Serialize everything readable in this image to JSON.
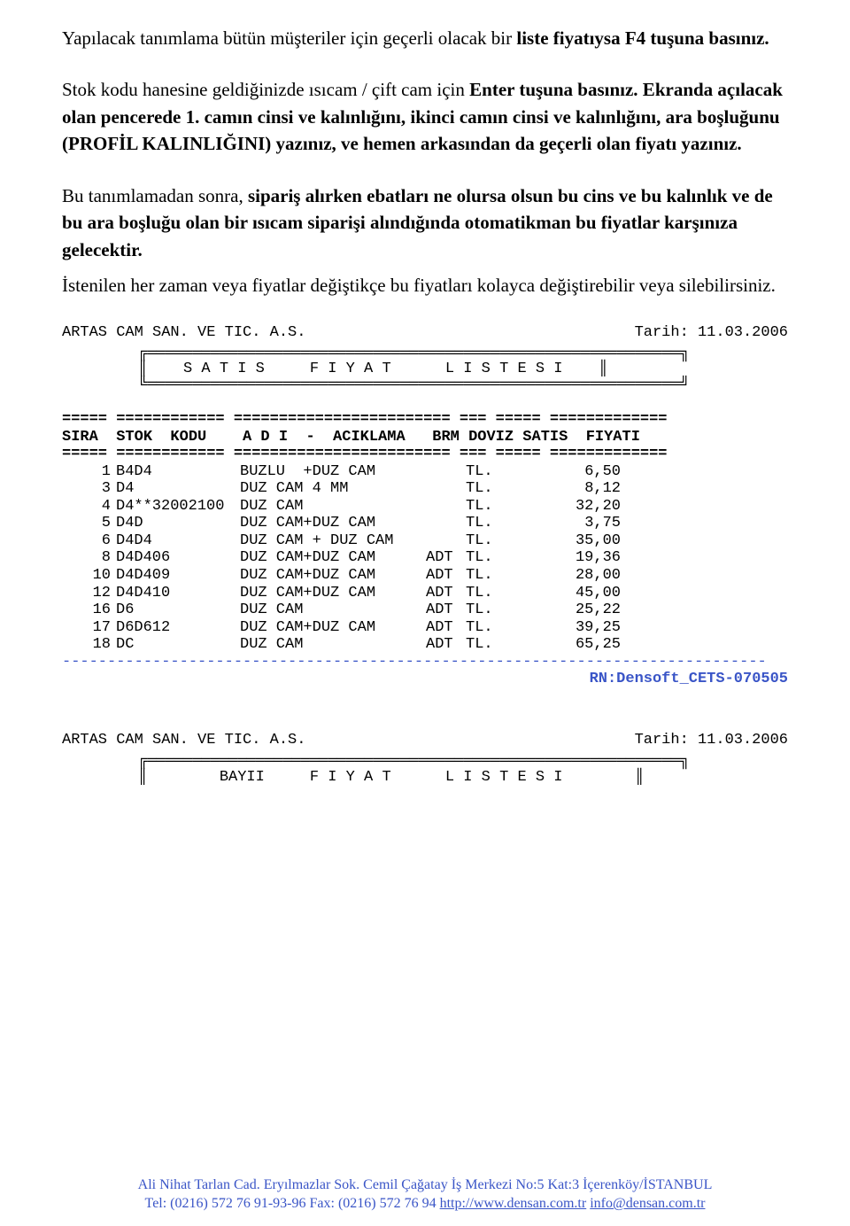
{
  "para1": {
    "pre": "Yapılacak tanımlama bütün müşteriler için geçerli olacak bir ",
    "bold": "liste fiyatıysa F4 tuşuna basınız."
  },
  "para2": {
    "pre": "Stok kodu hanesine geldiğinizde ısıcam / çift cam için ",
    "bold": "Enter tuşuna basınız. Ekranda açılacak olan pencerede 1. camın cinsi ve kalınlığını, ikinci camın cinsi ve kalınlığını, ara boşluğunu (PROFİL KALINLIĞINI) yazınız, ve hemen arkasından da geçerli olan fiyatı yazınız."
  },
  "para3": {
    "pre": "Bu tanımlamadan sonra, ",
    "bold": "sipariş alırken ebatları ne olursa olsun bu cins ve bu kalınlık ve de bu ara boşluğu olan bir ısıcam siparişi alındığında otomatikman bu fiyatlar karşınıza gelecektir."
  },
  "para4": "İstenilen her zaman veya fiyatlar değiştikçe bu fiyatları kolayca değiştirebilir veya silebilirsiniz.",
  "report1": {
    "company": "ARTAS CAM SAN. VE TIC. A.S.",
    "date": "Tarih: 11.03.2006",
    "boxTitle": "S A T I S     F I Y A T      L I S T E S I",
    "sep1": "===== ============ ======================== === ===== =============",
    "hdr": "SIRA  STOK  KODU    A D I  -  ACIKLAMA   BRM DOVIZ SATIS  FIYATI",
    "sep2": "===== ============ ======================== === ===== =============",
    "rows": [
      {
        "sira": "1",
        "kod": "B4D4",
        "aci": "BUZLU  +DUZ CAM",
        "brm": "",
        "dov": "TL.",
        "fiy": "6,50"
      },
      {
        "sira": "3",
        "kod": "D4",
        "aci": "DUZ CAM 4 MM",
        "brm": "",
        "dov": "TL.",
        "fiy": "8,12"
      },
      {
        "sira": "4",
        "kod": "D4**32002100",
        "aci": "DUZ CAM",
        "brm": "",
        "dov": "TL.",
        "fiy": "32,20"
      },
      {
        "sira": "5",
        "kod": "D4D",
        "aci": "DUZ CAM+DUZ CAM",
        "brm": "",
        "dov": "TL.",
        "fiy": "3,75"
      },
      {
        "sira": "6",
        "kod": "D4D4",
        "aci": "DUZ CAM + DUZ CAM",
        "brm": "",
        "dov": "TL.",
        "fiy": "35,00"
      },
      {
        "sira": "8",
        "kod": "D4D406",
        "aci": "DUZ CAM+DUZ CAM",
        "brm": "ADT",
        "dov": "TL.",
        "fiy": "19,36"
      },
      {
        "sira": "10",
        "kod": "D4D409",
        "aci": "DUZ CAM+DUZ CAM",
        "brm": "ADT",
        "dov": "TL.",
        "fiy": "28,00"
      },
      {
        "sira": "12",
        "kod": "D4D410",
        "aci": "DUZ CAM+DUZ CAM",
        "brm": "ADT",
        "dov": "TL.",
        "fiy": "45,00"
      },
      {
        "sira": "16",
        "kod": "D6",
        "aci": "DUZ CAM",
        "brm": "ADT",
        "dov": "TL.",
        "fiy": "25,22"
      },
      {
        "sira": "17",
        "kod": "D6D612",
        "aci": "DUZ CAM+DUZ CAM",
        "brm": "ADT",
        "dov": "TL.",
        "fiy": "39,25"
      },
      {
        "sira": "18",
        "kod": "DC",
        "aci": "DUZ CAM",
        "brm": "ADT",
        "dov": "TL.",
        "fiy": "65,25"
      }
    ],
    "dash": "------------------------------------------------------------------------------",
    "rn": "RN:Densoft_CETS-070505"
  },
  "report2": {
    "company": "ARTAS CAM SAN. VE TIC. A.S.",
    "date": "Tarih: 11.03.2006",
    "boxTitle": "BAYII     F I Y A T      L I S T E S I"
  },
  "footer": {
    "line1": "Ali Nihat Tarlan Cad. Eryılmazlar Sok. Cemil Çağatay  İş Merkezi No:5 Kat:3 İçerenköy/İSTANBUL",
    "line2a": "Tel: (0216) 572 76 91-93-96  Fax: (0216) 572 76 94   ",
    "link1": "http://www.densan.com.tr",
    "sep": "   ",
    "link2": "info@densan.com.tr"
  },
  "box": {
    "top": "╔═══════════════════════════════════════════════════════════╗",
    "midL": "║    ",
    "midR": "    ║",
    "bot": "╚═══════════════════════════════════════════════════════════╝"
  },
  "box2": {
    "top": "╔═══════════════════════════════════════════════════════════╗",
    "midL": "║        ",
    "midR": "        ║",
    "bot": ""
  }
}
